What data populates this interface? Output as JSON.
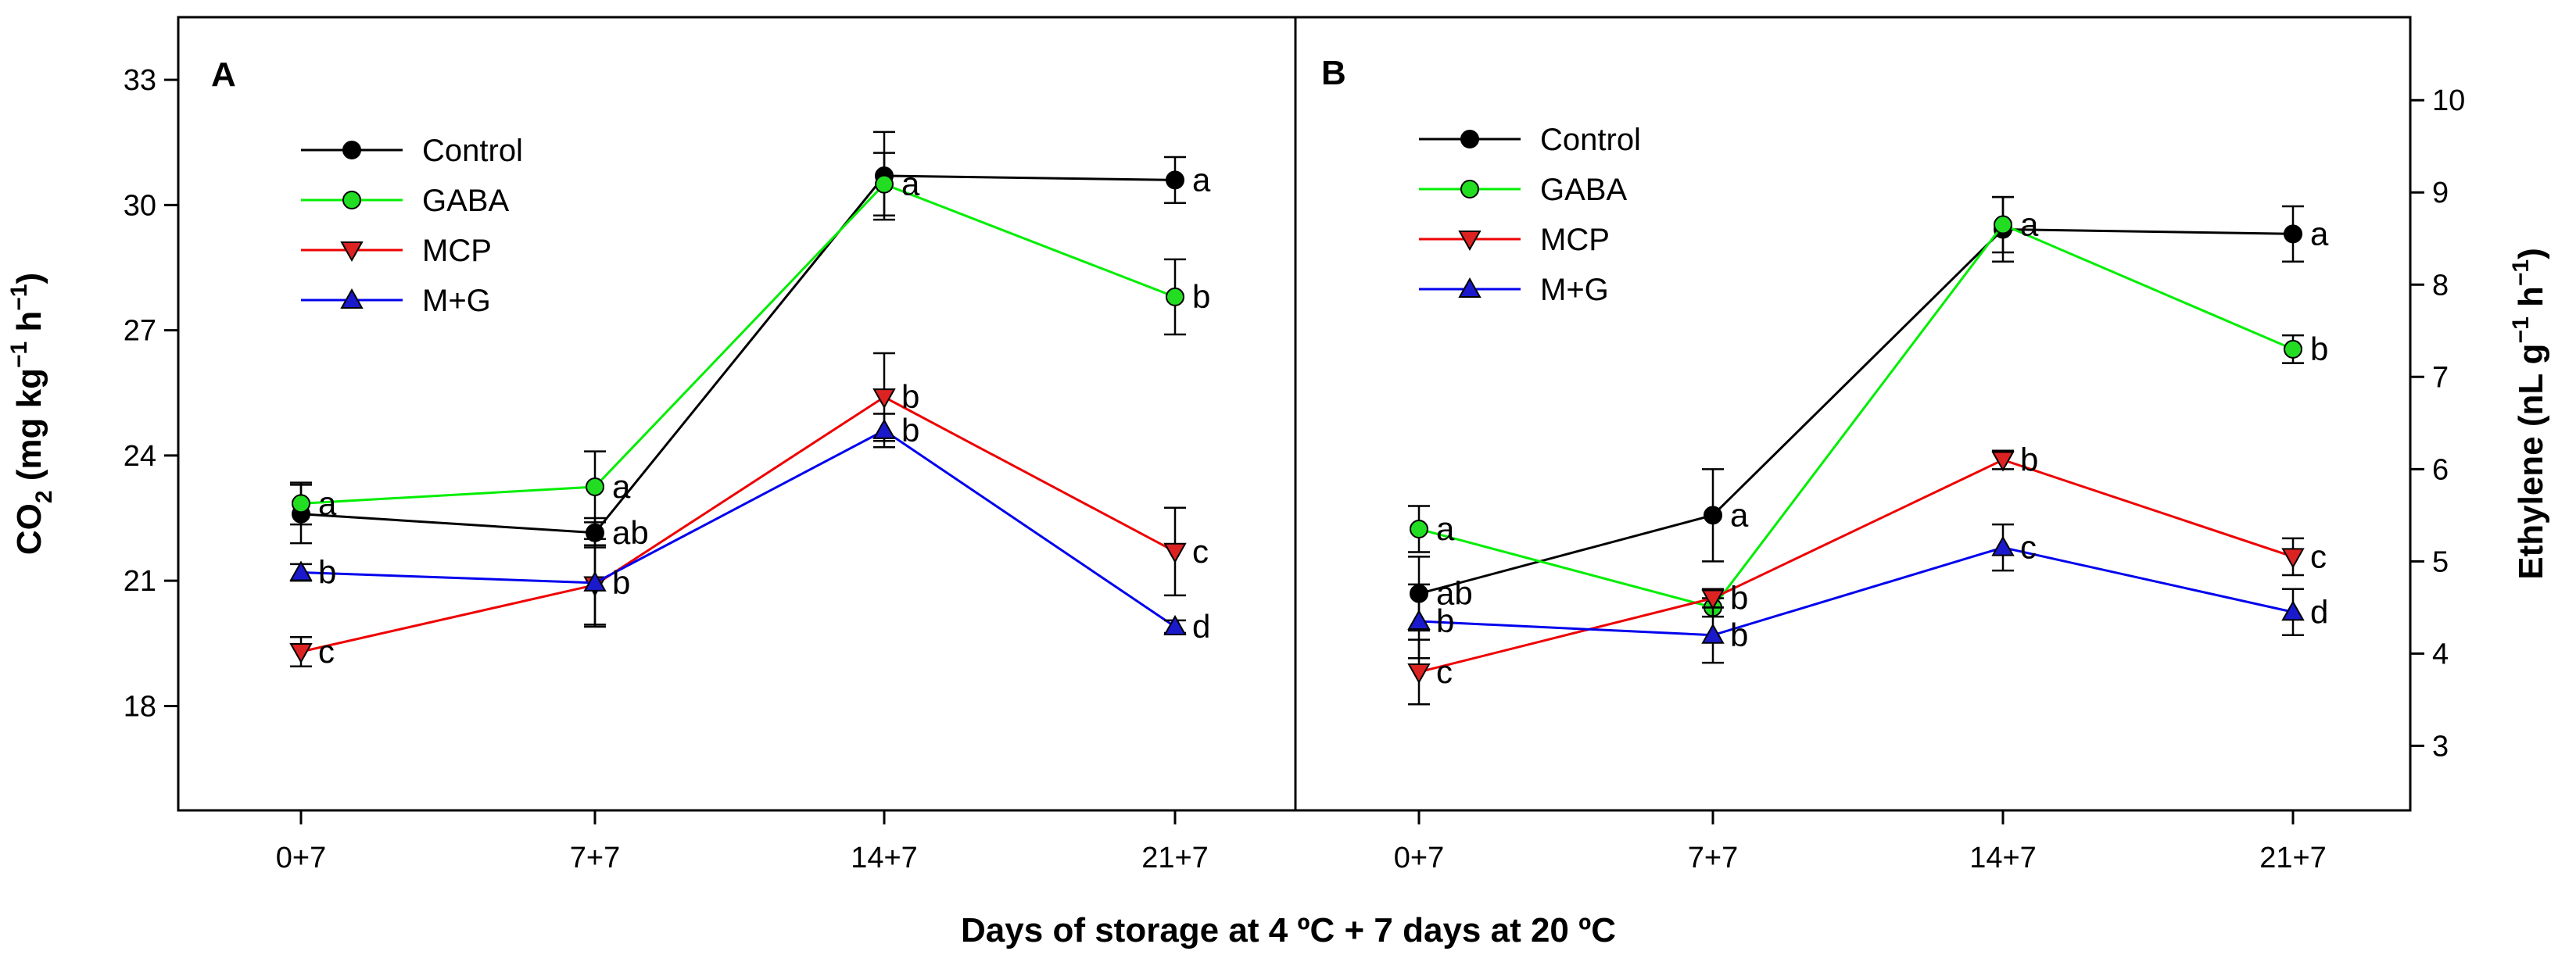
{
  "figure": {
    "xlabel": "Days of storage at 4 ºC + 7 days at 20 ºC"
  },
  "chart_data": [
    {
      "type": "line",
      "panel": "A",
      "ylabel": "CO2 (mg kg−1 h−1)",
      "ylabel_parts": {
        "base": "CO",
        "sub": "2",
        "mid": " (mg kg",
        "sup1": "−1",
        "sp": " h",
        "sup2": "−1",
        "end": ")"
      },
      "yaxis_side": "left",
      "ylim": [
        15.5,
        34.5
      ],
      "yticks": [
        18,
        21,
        24,
        27,
        30,
        33
      ],
      "categories": [
        "0+7",
        "7+7",
        "14+7",
        "21+7"
      ],
      "legend_position": "upper-left",
      "series": [
        {
          "name": "Control",
          "color": "#000000",
          "fill": "#000000",
          "marker": "circle",
          "values": [
            22.6,
            22.15,
            30.7,
            30.6
          ],
          "errors": [
            0.7,
            0.35,
            1.05,
            0.55
          ],
          "labels": [
            "",
            "ab",
            "",
            "a"
          ]
        },
        {
          "name": "GABA",
          "color": "#00ee00",
          "fill": "#22dd22",
          "marker": "circle",
          "values": [
            22.85,
            23.25,
            30.5,
            27.8
          ],
          "errors": [
            0.5,
            0.85,
            0.75,
            0.9
          ],
          "labels": [
            "a",
            "a",
            "a",
            "b"
          ]
        },
        {
          "name": "MCP",
          "color": "#ee0000",
          "fill": "#dd2222",
          "marker": "triangle-down",
          "values": [
            19.3,
            20.9,
            25.4,
            21.7
          ],
          "errors": [
            0.35,
            0.95,
            1.05,
            1.05
          ],
          "labels": [
            "c",
            "",
            "b",
            "c"
          ]
        },
        {
          "name": "M+G",
          "color": "#0000ee",
          "fill": "#1a1acc",
          "marker": "triangle-up",
          "values": [
            21.2,
            20.95,
            24.6,
            19.9
          ],
          "errors": [
            0.2,
            1.05,
            0.4,
            0.15
          ],
          "labels": [
            "b",
            "b",
            "b",
            "d"
          ]
        }
      ]
    },
    {
      "type": "line",
      "panel": "B",
      "ylabel": "Ethylene (nL g−1 h−1)",
      "ylabel_parts": {
        "base": "Ethylene (nL g",
        "sup1": "−1",
        "sp": " h",
        "sup2": "−1",
        "end": ")"
      },
      "yaxis_side": "right",
      "ylim": [
        2.3,
        10.9
      ],
      "yticks": [
        3,
        4,
        5,
        6,
        7,
        8,
        9,
        10
      ],
      "categories": [
        "0+7",
        "7+7",
        "14+7",
        "21+7"
      ],
      "legend_position": "upper-left",
      "series": [
        {
          "name": "Control",
          "color": "#000000",
          "fill": "#000000",
          "marker": "circle",
          "values": [
            4.65,
            5.5,
            8.6,
            8.55
          ],
          "errors": [
            0.4,
            0.5,
            0.35,
            0.3
          ],
          "labels": [
            "ab",
            "a",
            "",
            "a"
          ]
        },
        {
          "name": "GABA",
          "color": "#00ee00",
          "fill": "#22dd22",
          "marker": "circle",
          "values": [
            5.35,
            4.5,
            8.65,
            7.3
          ],
          "errors": [
            0.25,
            0.1,
            0.3,
            0.15
          ],
          "labels": [
            "a",
            "",
            "a",
            "b"
          ]
        },
        {
          "name": "MCP",
          "color": "#ee0000",
          "fill": "#dd2222",
          "marker": "triangle-down",
          "values": [
            3.8,
            4.6,
            6.1,
            5.05
          ],
          "errors": [
            0.35,
            0.1,
            0.1,
            0.2
          ],
          "labels": [
            "c",
            "b",
            "b",
            "c"
          ]
        },
        {
          "name": "M+G",
          "color": "#0000ee",
          "fill": "#1a1acc",
          "marker": "triangle-up",
          "values": [
            4.35,
            4.2,
            5.15,
            4.45
          ],
          "errors": [
            0.4,
            0.3,
            0.25,
            0.25
          ],
          "labels": [
            "b",
            "b",
            "c",
            "d"
          ]
        }
      ]
    }
  ]
}
